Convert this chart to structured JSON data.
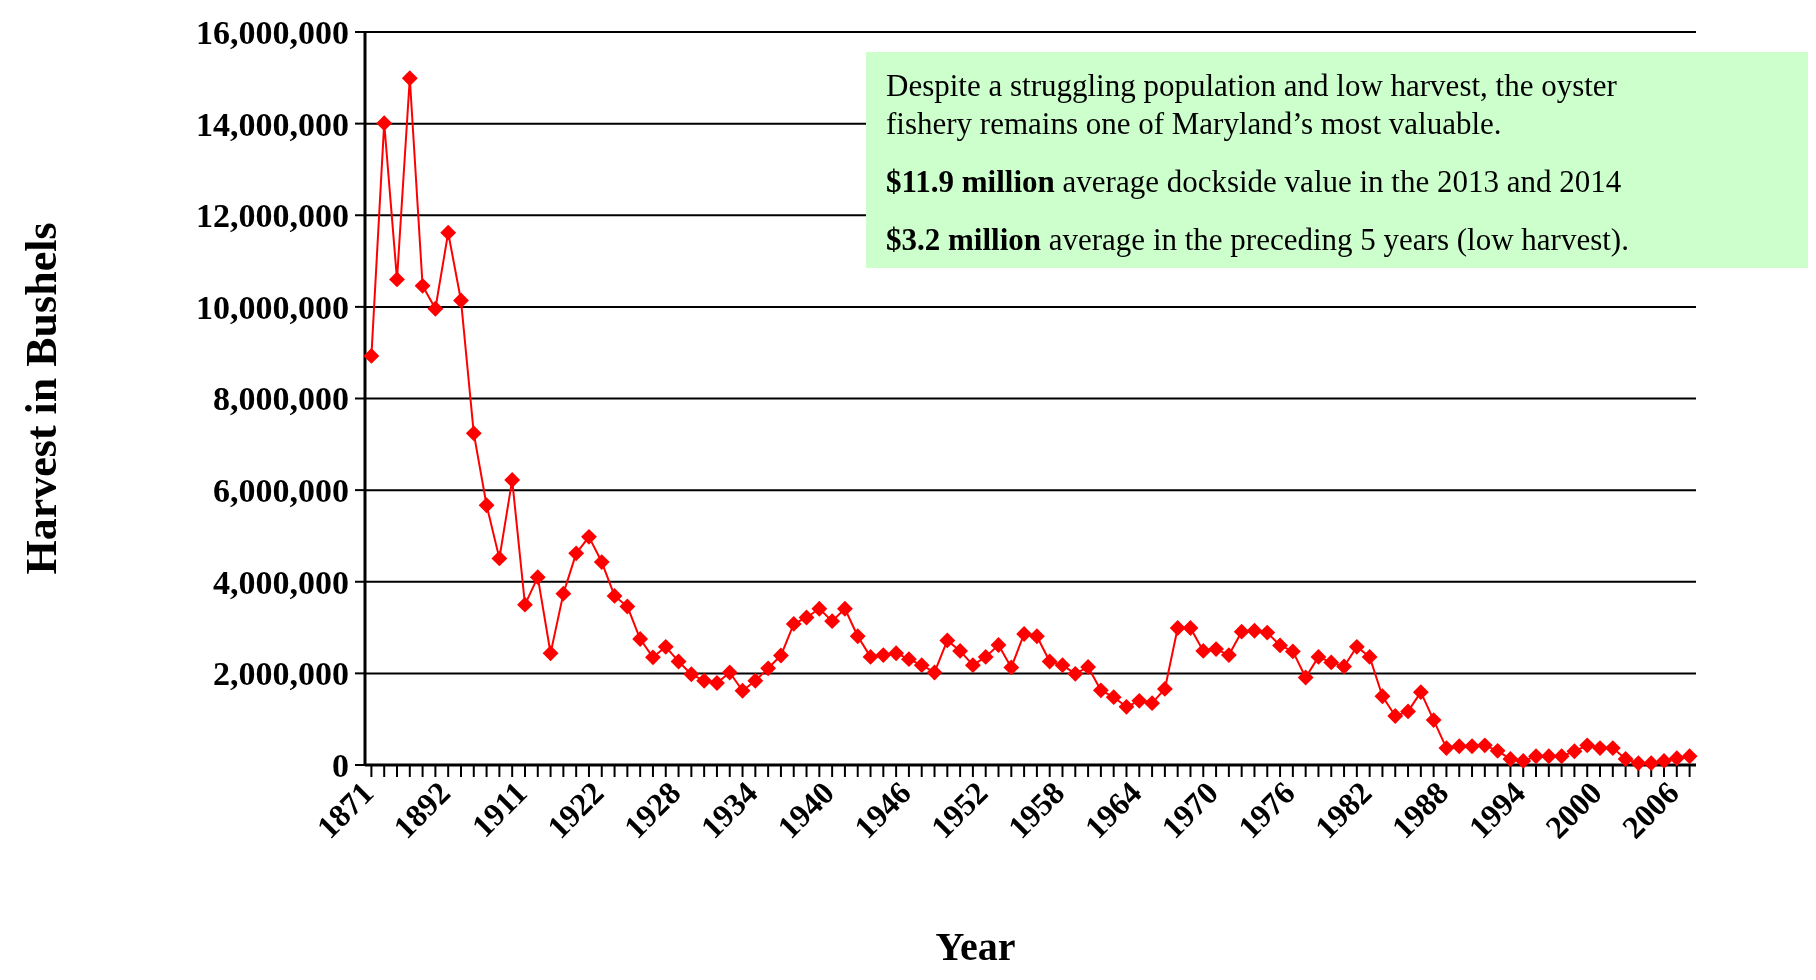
{
  "chart_data": {
    "type": "line",
    "xlabel": "Year",
    "ylabel": "Harvest in Bushels",
    "categories": [
      "1871",
      null,
      null,
      null,
      null,
      null,
      "1892",
      null,
      null,
      null,
      null,
      null,
      "1911",
      null,
      null,
      null,
      null,
      null,
      "1922",
      null,
      null,
      null,
      null,
      null,
      "1928",
      null,
      null,
      null,
      null,
      null,
      "1934",
      null,
      null,
      null,
      null,
      null,
      "1940",
      null,
      null,
      null,
      null,
      null,
      "1946",
      null,
      null,
      null,
      null,
      null,
      "1952",
      null,
      null,
      null,
      null,
      null,
      "1958",
      null,
      null,
      null,
      null,
      null,
      "1964",
      null,
      null,
      null,
      null,
      null,
      "1970",
      null,
      null,
      null,
      null,
      null,
      "1976",
      null,
      null,
      null,
      null,
      null,
      "1982",
      null,
      null,
      null,
      null,
      null,
      "1988",
      null,
      null,
      null,
      null,
      null,
      "1994",
      null,
      null,
      null,
      null,
      null,
      "2000",
      null,
      null,
      null,
      null,
      null,
      "2006",
      null
    ],
    "series": [
      {
        "color": "#ff0000",
        "values": [
          8930000,
          14010000,
          10600000,
          14990000,
          10460000,
          9960000,
          11620000,
          10140000,
          7240000,
          5670000,
          4510000,
          6220000,
          3500000,
          4100000,
          2440000,
          3740000,
          4620000,
          4980000,
          4430000,
          3690000,
          3460000,
          2750000,
          2350000,
          2580000,
          2260000,
          1980000,
          1840000,
          1790000,
          2020000,
          1620000,
          1840000,
          2110000,
          2390000,
          3080000,
          3220000,
          3410000,
          3140000,
          3410000,
          2810000,
          2360000,
          2400000,
          2440000,
          2310000,
          2180000,
          2020000,
          2720000,
          2490000,
          2180000,
          2360000,
          2620000,
          2130000,
          2860000,
          2810000,
          2260000,
          2180000,
          1990000,
          2140000,
          1630000,
          1480000,
          1270000,
          1400000,
          1350000,
          1660000,
          2990000,
          2990000,
          2490000,
          2530000,
          2400000,
          2910000,
          2930000,
          2890000,
          2610000,
          2480000,
          1910000,
          2360000,
          2240000,
          2150000,
          2580000,
          2360000,
          1500000,
          1070000,
          1170000,
          1590000,
          980000,
          370000,
          410000,
          410000,
          430000,
          310000,
          130000,
          90000,
          190000,
          190000,
          190000,
          300000,
          430000,
          370000,
          370000,
          130000,
          40000,
          40000,
          90000,
          150000,
          190000
        ]
      }
    ],
    "ylim": [
      0,
      16000000
    ],
    "yticks": [
      {
        "value": 0,
        "label": "0"
      },
      {
        "value": 2000000,
        "label": "2,000,000"
      },
      {
        "value": 4000000,
        "label": "4,000,000"
      },
      {
        "value": 6000000,
        "label": "6,000,000"
      },
      {
        "value": 8000000,
        "label": "8,000,000"
      },
      {
        "value": 10000000,
        "label": "10,000,000"
      },
      {
        "value": 12000000,
        "label": "12,000,000"
      },
      {
        "value": 14000000,
        "label": "14,000,000"
      },
      {
        "value": 16000000,
        "label": "16,000,000"
      }
    ],
    "grid": "y",
    "marker": "diamond",
    "line_style": "solid",
    "annotations": [
      "Despite a struggling population and low harvest, the oyster fishery remains one of Maryland’s most valuable.",
      "$11.9 million average dockside value in the 2013 and 2014",
      "$3.2 million average in the preceding 5 years (low harvest)."
    ]
  }
}
